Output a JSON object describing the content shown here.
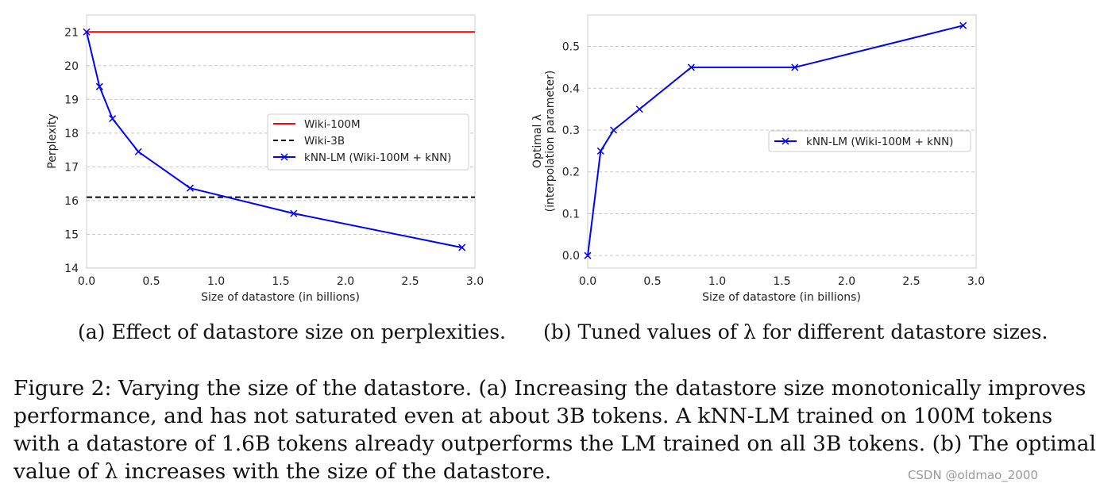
{
  "chart_data": [
    {
      "id": "a",
      "type": "line",
      "xlabel": "Size of datastore (in billions)",
      "ylabel": "Perplexity",
      "xlim": [
        0.0,
        3.0
      ],
      "ylim": [
        14,
        21.5
      ],
      "xticks": [
        "0.0",
        "0.5",
        "1.0",
        "1.5",
        "2.0",
        "2.5",
        "3.0"
      ],
      "yticks": [
        "14",
        "15",
        "16",
        "17",
        "18",
        "19",
        "20",
        "21"
      ],
      "grid": "horizontal-dashed",
      "legend_position": "center-right",
      "series": [
        {
          "name": "Wiki-100M",
          "style": "solid",
          "color": "#ff0000",
          "y_const": 21.0
        },
        {
          "name": "Wiki-3B",
          "style": "dashed",
          "color": "#000000",
          "y_const": 16.1
        },
        {
          "name": "kNN-LM (Wiki-100M + kNN)",
          "style": "solid-x",
          "color": "#0000ff",
          "x": [
            0.0,
            0.1,
            0.2,
            0.4,
            0.8,
            1.6,
            2.9
          ],
          "y": [
            21.0,
            19.38,
            18.43,
            17.45,
            16.37,
            15.62,
            14.61
          ]
        }
      ]
    },
    {
      "id": "b",
      "type": "line",
      "xlabel": "Size of datastore (in billions)",
      "ylabel_line1": "Optimal λ",
      "ylabel_line2": "(interpolation parameter)",
      "xlim": [
        0.0,
        3.0
      ],
      "ylim": [
        -0.03,
        0.575
      ],
      "xticks": [
        "0.0",
        "0.5",
        "1.0",
        "1.5",
        "2.0",
        "2.5",
        "3.0"
      ],
      "yticks": [
        "0.0",
        "0.1",
        "0.2",
        "0.3",
        "0.4",
        "0.5"
      ],
      "grid": "horizontal-dashed",
      "legend_position": "center-right",
      "series": [
        {
          "name": "kNN-LM (Wiki-100M + kNN)",
          "style": "solid-x",
          "color": "#0000ff",
          "x": [
            0.0,
            0.1,
            0.2,
            0.4,
            0.8,
            1.6,
            2.9
          ],
          "y": [
            0.0,
            0.25,
            0.3,
            0.35,
            0.45,
            0.45,
            0.55
          ]
        }
      ]
    }
  ],
  "subcaptions": {
    "a": "(a) Effect of datastore size on perplexities.",
    "b": "(b) Tuned values of λ for different datastore sizes."
  },
  "caption": {
    "line1": "Figure 2: Varying the size of the datastore. (a) Increasing the datastore size monotonically improves",
    "line2": "performance, and has not saturated even at about 3B tokens. A kNN-LM trained on 100M tokens",
    "line3": "with a datastore of 1.6B tokens already outperforms the LM trained on all 3B tokens. (b) The optimal",
    "line4": "value of λ increases with the size of the datastore."
  },
  "watermark": "CSDN @oldmao_2000"
}
